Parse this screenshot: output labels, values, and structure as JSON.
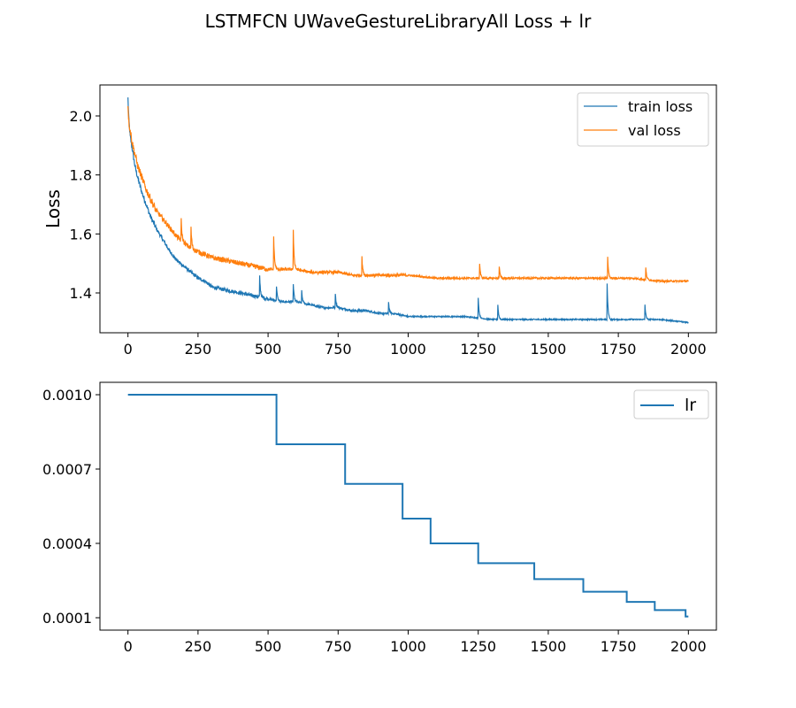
{
  "figure": {
    "title": "LSTMFCN UWaveGestureLibraryAll Loss + lr"
  },
  "colors": {
    "train": "#1f77b4",
    "val": "#ff7f0e",
    "lr": "#1f77b4",
    "axis": "#000000"
  },
  "chart_data": [
    {
      "type": "line",
      "title": "",
      "xlabel": "",
      "ylabel": "Loss",
      "xlim": [
        -100,
        2100
      ],
      "ylim": [
        1.265,
        2.105
      ],
      "x_ticks": [
        0,
        250,
        500,
        750,
        1000,
        1250,
        1500,
        1750,
        2000
      ],
      "y_ticks": [
        1.4,
        1.6,
        1.8,
        2.0
      ],
      "x_tick_labels": [
        "0",
        "250",
        "500",
        "750",
        "1000",
        "1250",
        "1500",
        "1750",
        "2000"
      ],
      "y_tick_labels": [
        "1.4",
        "1.6",
        "1.8",
        "2.0"
      ],
      "grid": false,
      "legend": "top-right",
      "series": [
        {
          "name": "train loss",
          "x": [
            0,
            3,
            8,
            15,
            25,
            35,
            50,
            65,
            80,
            100,
            125,
            150,
            175,
            200,
            225,
            250,
            275,
            300,
            350,
            400,
            450,
            500,
            550,
            600,
            650,
            700,
            750,
            800,
            850,
            900,
            950,
            1000,
            1100,
            1200,
            1300,
            1400,
            1500,
            1600,
            1700,
            1800,
            1900,
            2000
          ],
          "y": [
            2.06,
            1.99,
            1.93,
            1.89,
            1.83,
            1.79,
            1.74,
            1.7,
            1.66,
            1.62,
            1.58,
            1.54,
            1.51,
            1.49,
            1.47,
            1.45,
            1.44,
            1.42,
            1.41,
            1.4,
            1.39,
            1.38,
            1.37,
            1.37,
            1.36,
            1.35,
            1.35,
            1.34,
            1.34,
            1.33,
            1.33,
            1.32,
            1.32,
            1.32,
            1.31,
            1.31,
            1.31,
            1.31,
            1.31,
            1.31,
            1.31,
            1.3
          ]
        },
        {
          "name": "val loss",
          "x": [
            0,
            3,
            8,
            15,
            25,
            35,
            50,
            65,
            80,
            100,
            125,
            150,
            175,
            200,
            225,
            250,
            275,
            300,
            350,
            400,
            450,
            500,
            550,
            600,
            650,
            700,
            750,
            800,
            850,
            900,
            950,
            1000,
            1100,
            1200,
            1300,
            1400,
            1500,
            1600,
            1700,
            1800,
            1900,
            2000
          ],
          "y": [
            2.04,
            1.98,
            1.95,
            1.91,
            1.87,
            1.83,
            1.79,
            1.75,
            1.72,
            1.68,
            1.65,
            1.62,
            1.59,
            1.57,
            1.55,
            1.54,
            1.53,
            1.52,
            1.51,
            1.5,
            1.49,
            1.48,
            1.48,
            1.48,
            1.47,
            1.47,
            1.47,
            1.46,
            1.46,
            1.46,
            1.46,
            1.46,
            1.45,
            1.45,
            1.45,
            1.45,
            1.45,
            1.45,
            1.45,
            1.45,
            1.44,
            1.44
          ]
        }
      ]
    },
    {
      "type": "line",
      "title": "",
      "xlabel": "",
      "ylabel": "",
      "xlim": [
        -100,
        2100
      ],
      "ylim": [
        5e-05,
        0.00105
      ],
      "x_ticks": [
        0,
        250,
        500,
        750,
        1000,
        1250,
        1500,
        1750,
        2000
      ],
      "y_ticks": [
        0.0001,
        0.0004,
        0.0007,
        0.001
      ],
      "x_tick_labels": [
        "0",
        "250",
        "500",
        "750",
        "1000",
        "1250",
        "1500",
        "1750",
        "2000"
      ],
      "y_tick_labels": [
        "0.0001",
        "0.0004",
        "0.0007",
        "0.0010"
      ],
      "grid": false,
      "legend": "top-right",
      "series": [
        {
          "name": "lr",
          "step": "post",
          "x": [
            0,
            530,
            775,
            980,
            1080,
            1250,
            1450,
            1625,
            1780,
            1880,
            1990,
            2000
          ],
          "y": [
            0.001,
            0.0008,
            0.00064,
            0.0005,
            0.0004,
            0.00032,
            0.000256,
            0.000205,
            0.000164,
            0.000131,
            0.000105,
            0.000105
          ]
        }
      ]
    }
  ]
}
